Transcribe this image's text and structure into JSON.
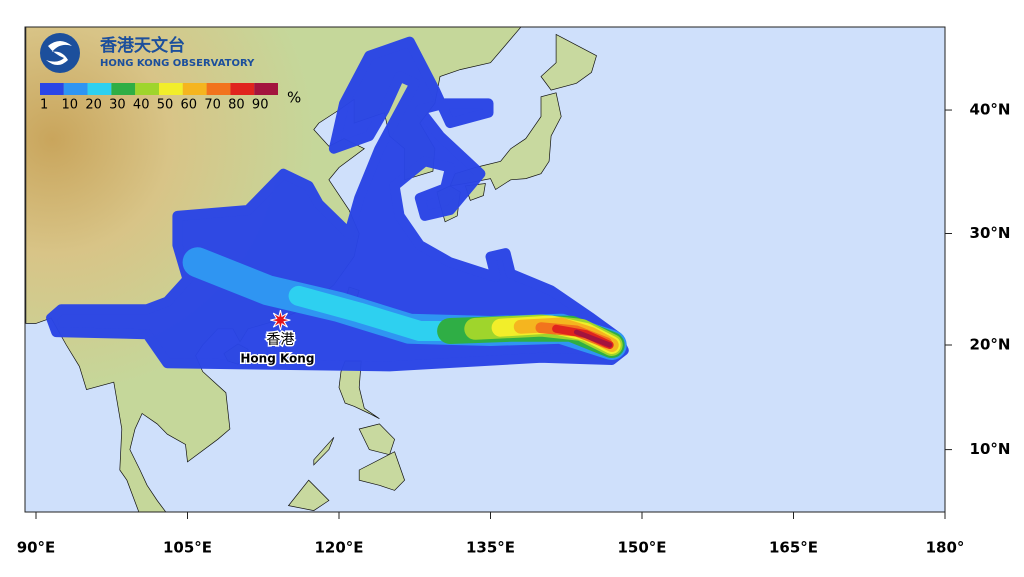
{
  "header": {
    "title": "香港天文台",
    "subtitle": "HONG KONG OBSERVATORY"
  },
  "legend": {
    "values": [
      1,
      10,
      20,
      30,
      40,
      50,
      60,
      70,
      80,
      90
    ],
    "colors": [
      "#2a45e6",
      "#2f95f2",
      "#2ed0f0",
      "#2fae45",
      "#9fd52c",
      "#f2ee2a",
      "#f5b51f",
      "#f2731d",
      "#e0241e",
      "#a3143e"
    ],
    "unit": "%"
  },
  "map": {
    "lon_ticks": [
      {
        "value": 90,
        "label": "90°E"
      },
      {
        "value": 105,
        "label": "105°E"
      },
      {
        "value": 120,
        "label": "120°E"
      },
      {
        "value": 135,
        "label": "135°E"
      },
      {
        "value": 150,
        "label": "150°E"
      },
      {
        "value": 165,
        "label": "165°E"
      },
      {
        "value": 180,
        "label": "180°"
      }
    ],
    "lat_ticks": [
      {
        "value": 10,
        "label": "10°N"
      },
      {
        "value": 20,
        "label": "20°N"
      },
      {
        "value": 30,
        "label": "30°N"
      },
      {
        "value": 40,
        "label": "40°N"
      }
    ],
    "marker": {
      "label_zh": "香港",
      "label_en": "Hong Kong"
    }
  }
}
